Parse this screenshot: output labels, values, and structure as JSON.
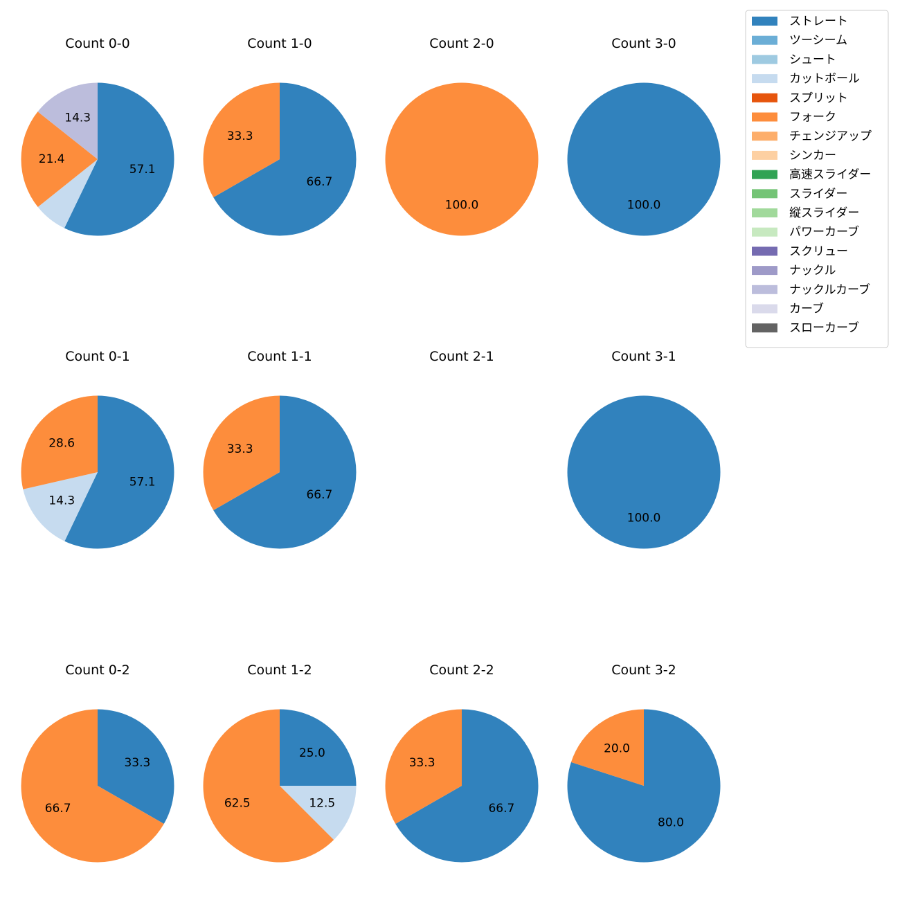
{
  "chart_data": {
    "type": "pie",
    "legend": {
      "placement": "top-right",
      "entries": [
        {
          "name": "ストレート",
          "color": "#3182bd"
        },
        {
          "name": "ツーシーム",
          "color": "#6baed6"
        },
        {
          "name": "シュート",
          "color": "#9ecae1"
        },
        {
          "name": "カットボール",
          "color": "#c6dbef"
        },
        {
          "name": "スプリット",
          "color": "#e6550d"
        },
        {
          "name": "フォーク",
          "color": "#fd8d3c"
        },
        {
          "name": "チェンジアップ",
          "color": "#fdae6b"
        },
        {
          "name": "シンカー",
          "color": "#fdd0a2"
        },
        {
          "name": "高速スライダー",
          "color": "#31a354"
        },
        {
          "name": "スライダー",
          "color": "#74c476"
        },
        {
          "name": "縦スライダー",
          "color": "#a1d99b"
        },
        {
          "name": "パワーカーブ",
          "color": "#c7e9c0"
        },
        {
          "name": "スクリュー",
          "color": "#756bb1"
        },
        {
          "name": "ナックル",
          "color": "#9e9ac8"
        },
        {
          "name": "ナックルカーブ",
          "color": "#bcbddc"
        },
        {
          "name": "カーブ",
          "color": "#dadaeb"
        },
        {
          "name": "スローカーブ",
          "color": "#636363"
        }
      ]
    },
    "pies": [
      {
        "title": "Count 0-0",
        "slices": [
          {
            "name": "ストレート",
            "value": 57.1,
            "label": "57.1"
          },
          {
            "name": "カットボール",
            "value": 7.1,
            "label": ""
          },
          {
            "name": "フォーク",
            "value": 21.4,
            "label": "21.4"
          },
          {
            "name": "ナックルカーブ",
            "value": 14.3,
            "label": "14.3"
          }
        ]
      },
      {
        "title": "Count 1-0",
        "slices": [
          {
            "name": "ストレート",
            "value": 66.7,
            "label": "66.7"
          },
          {
            "name": "フォーク",
            "value": 33.3,
            "label": "33.3"
          }
        ]
      },
      {
        "title": "Count 2-0",
        "slices": [
          {
            "name": "フォーク",
            "value": 100.0,
            "label": "100.0"
          }
        ]
      },
      {
        "title": "Count 3-0",
        "slices": [
          {
            "name": "ストレート",
            "value": 100.0,
            "label": "100.0"
          }
        ]
      },
      {
        "title": "Count 0-1",
        "slices": [
          {
            "name": "ストレート",
            "value": 57.1,
            "label": "57.1"
          },
          {
            "name": "カットボール",
            "value": 14.3,
            "label": "14.3"
          },
          {
            "name": "フォーク",
            "value": 28.6,
            "label": "28.6"
          }
        ]
      },
      {
        "title": "Count 1-1",
        "slices": [
          {
            "name": "ストレート",
            "value": 66.7,
            "label": "66.7"
          },
          {
            "name": "フォーク",
            "value": 33.3,
            "label": "33.3"
          }
        ]
      },
      {
        "title": "Count 2-1",
        "slices": []
      },
      {
        "title": "Count 3-1",
        "slices": [
          {
            "name": "ストレート",
            "value": 100.0,
            "label": "100.0"
          }
        ]
      },
      {
        "title": "Count 0-2",
        "slices": [
          {
            "name": "ストレート",
            "value": 33.3,
            "label": "33.3"
          },
          {
            "name": "フォーク",
            "value": 66.7,
            "label": "66.7"
          }
        ]
      },
      {
        "title": "Count 1-2",
        "slices": [
          {
            "name": "ストレート",
            "value": 25.0,
            "label": "25.0"
          },
          {
            "name": "カットボール",
            "value": 12.5,
            "label": "12.5"
          },
          {
            "name": "フォーク",
            "value": 62.5,
            "label": "62.5"
          }
        ]
      },
      {
        "title": "Count 2-2",
        "slices": [
          {
            "name": "ストレート",
            "value": 66.7,
            "label": "66.7"
          },
          {
            "name": "フォーク",
            "value": 33.3,
            "label": "33.3"
          }
        ]
      },
      {
        "title": "Count 3-2",
        "slices": [
          {
            "name": "ストレート",
            "value": 80.0,
            "label": "80.0"
          },
          {
            "name": "フォーク",
            "value": 20.0,
            "label": "20.0"
          }
        ]
      }
    ]
  }
}
